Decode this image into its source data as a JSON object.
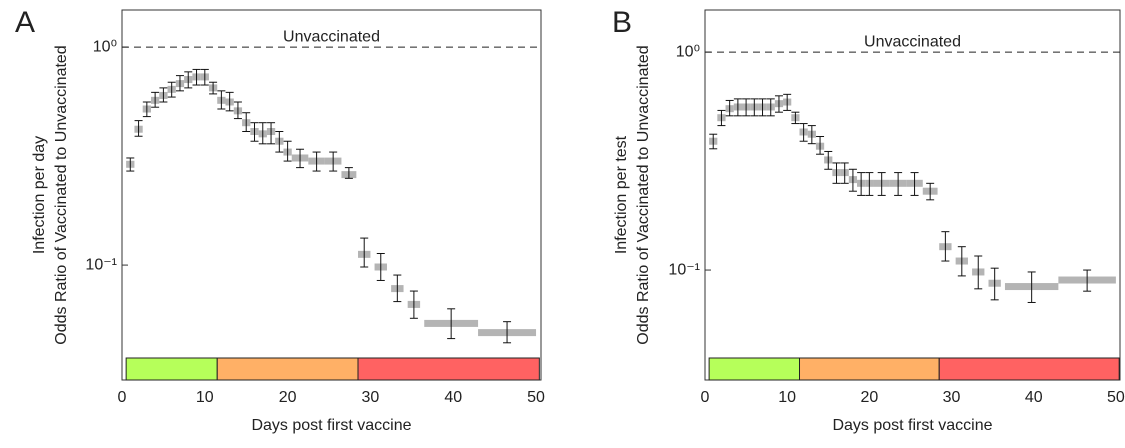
{
  "chart_data": [
    {
      "type": "interval",
      "title": "A",
      "ylabel": [
        "Odds Ratio of Vaccinated to Unvaccinated",
        "Infection per day"
      ],
      "xlabel": "Days post first vaccine",
      "reference_line": {
        "value": 1,
        "label": "Unvaccinated"
      },
      "log_y": true,
      "xlim": [
        0,
        50.6
      ],
      "ylim": [
        0.0297,
        1.48
      ],
      "xticks": [
        0,
        10,
        20,
        30,
        40,
        50
      ],
      "yticks": [
        {
          "value": 0.1,
          "label": "10⁻¹"
        },
        {
          "value": 1,
          "label": "10⁰"
        }
      ],
      "color": "#b4b4b4",
      "x_start": [
        0.5,
        1.5,
        2.5,
        3.5,
        4.5,
        5.5,
        6.5,
        7.5,
        8.5,
        9.5,
        10.5,
        11.5,
        12.5,
        13.5,
        14.5,
        15.5,
        16.5,
        17.5,
        18.5,
        19.5,
        20.5,
        22.5,
        24.5,
        26.5,
        28.5,
        30.5,
        32.5,
        34.5,
        36.5,
        43
      ],
      "x_end": [
        1.5,
        2.5,
        3.5,
        4.5,
        5.5,
        6.5,
        7.5,
        8.5,
        9.5,
        10.5,
        11.5,
        12.5,
        13.5,
        14.5,
        15.5,
        16.5,
        17.5,
        18.5,
        19.5,
        20.5,
        22.5,
        24.5,
        26.5,
        28.3,
        30,
        32,
        34,
        36,
        43,
        50
      ],
      "values": [
        0.29,
        0.42,
        0.52,
        0.57,
        0.6,
        0.64,
        0.68,
        0.71,
        0.73,
        0.73,
        0.65,
        0.57,
        0.56,
        0.51,
        0.45,
        0.41,
        0.4,
        0.41,
        0.37,
        0.33,
        0.31,
        0.3,
        0.3,
        0.26,
        0.112,
        0.098,
        0.078,
        0.066,
        0.054,
        0.049
      ],
      "err_low": [
        0.27,
        0.39,
        0.48,
        0.53,
        0.56,
        0.59,
        0.63,
        0.65,
        0.67,
        0.67,
        0.61,
        0.52,
        0.51,
        0.47,
        0.41,
        0.37,
        0.36,
        0.36,
        0.33,
        0.3,
        0.28,
        0.27,
        0.27,
        0.25,
        0.098,
        0.085,
        0.068,
        0.057,
        0.046,
        0.044
      ],
      "err_high": [
        0.31,
        0.46,
        0.56,
        0.62,
        0.65,
        0.69,
        0.74,
        0.77,
        0.79,
        0.79,
        0.69,
        0.63,
        0.62,
        0.56,
        0.5,
        0.45,
        0.45,
        0.45,
        0.41,
        0.37,
        0.34,
        0.33,
        0.33,
        0.28,
        0.133,
        0.113,
        0.09,
        0.076,
        0.063,
        0.055
      ],
      "phases": [
        {
          "start": 0.5,
          "end": 11.5,
          "color": "#b6ff5a"
        },
        {
          "start": 11.5,
          "end": 28.5,
          "color": "#ffb066"
        },
        {
          "start": 28.5,
          "end": 50.4,
          "color": "#ff6262"
        }
      ]
    },
    {
      "type": "interval",
      "title": "B",
      "ylabel": [
        "Odds Ratio of Vaccinated to Unvaccinated",
        "Infection per test"
      ],
      "xlabel": "Days post first vaccine",
      "reference_line": {
        "value": 1,
        "label": "Unvaccinated"
      },
      "log_y": true,
      "xlim": [
        0,
        50.5
      ],
      "ylim": [
        0.0313,
        1.56
      ],
      "xticks": [
        0,
        10,
        20,
        30,
        40,
        50
      ],
      "yticks": [
        {
          "value": 0.1,
          "label": "10⁻¹"
        },
        {
          "value": 1,
          "label": "10⁰"
        }
      ],
      "color": "#b4b4b4",
      "x_start": [
        0.5,
        1.5,
        2.5,
        3.5,
        4.5,
        5.5,
        6.5,
        7.5,
        8.5,
        9.5,
        10.5,
        11.5,
        12.5,
        13.5,
        14.5,
        15.5,
        16.5,
        17.5,
        18.5,
        19.5,
        20.5,
        22.5,
        24.5,
        26.5,
        28.5,
        30.5,
        32.5,
        34.5,
        36.5,
        43
      ],
      "x_end": [
        1.5,
        2.5,
        3.5,
        4.5,
        5.5,
        6.5,
        7.5,
        8.5,
        9.5,
        10.5,
        11.5,
        12.5,
        13.5,
        14.5,
        15.5,
        16.5,
        17.5,
        18.5,
        19.5,
        20.5,
        22.5,
        24.5,
        26.5,
        28.3,
        30,
        32,
        34,
        36,
        43,
        50
      ],
      "values": [
        0.39,
        0.5,
        0.55,
        0.56,
        0.56,
        0.56,
        0.56,
        0.56,
        0.58,
        0.59,
        0.5,
        0.43,
        0.42,
        0.37,
        0.32,
        0.28,
        0.28,
        0.26,
        0.25,
        0.25,
        0.25,
        0.25,
        0.25,
        0.23,
        0.128,
        0.11,
        0.098,
        0.087,
        0.084,
        0.09
      ],
      "err_low": [
        0.36,
        0.46,
        0.51,
        0.51,
        0.51,
        0.51,
        0.51,
        0.51,
        0.53,
        0.54,
        0.47,
        0.39,
        0.38,
        0.34,
        0.29,
        0.25,
        0.25,
        0.23,
        0.22,
        0.22,
        0.22,
        0.22,
        0.22,
        0.21,
        0.11,
        0.094,
        0.082,
        0.073,
        0.071,
        0.08
      ],
      "err_high": [
        0.42,
        0.54,
        0.6,
        0.61,
        0.61,
        0.61,
        0.61,
        0.61,
        0.63,
        0.64,
        0.53,
        0.47,
        0.46,
        0.41,
        0.35,
        0.31,
        0.31,
        0.29,
        0.28,
        0.28,
        0.28,
        0.28,
        0.28,
        0.25,
        0.15,
        0.128,
        0.116,
        0.102,
        0.098,
        0.1
      ],
      "phases": [
        {
          "start": 0.5,
          "end": 11.5,
          "color": "#b6ff5a"
        },
        {
          "start": 11.5,
          "end": 28.5,
          "color": "#ffb066"
        },
        {
          "start": 28.5,
          "end": 50.4,
          "color": "#ff6262"
        }
      ]
    }
  ]
}
